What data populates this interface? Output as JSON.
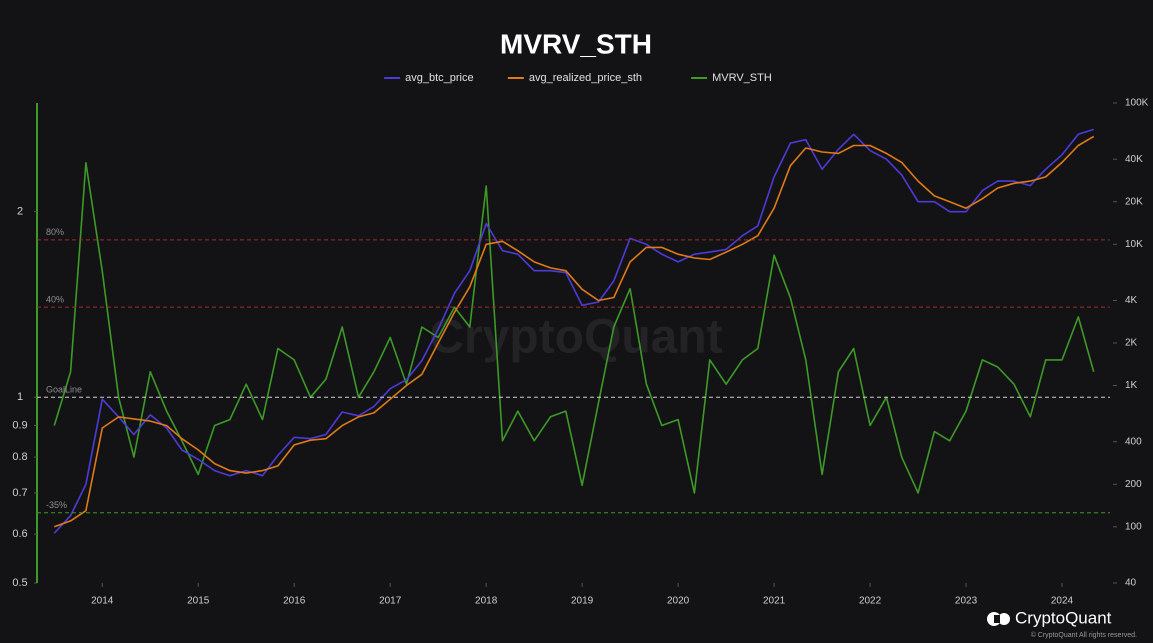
{
  "chart_data": {
    "type": "line",
    "title": "MVRV_STH",
    "log_scale": true,
    "grid": false,
    "legend": "top",
    "x": [
      2013.5,
      2013.67,
      2013.83,
      2014,
      2014.17,
      2014.33,
      2014.5,
      2014.67,
      2014.83,
      2015,
      2015.17,
      2015.33,
      2015.5,
      2015.67,
      2015.83,
      2016,
      2016.17,
      2016.33,
      2016.5,
      2016.67,
      2016.83,
      2017,
      2017.17,
      2017.33,
      2017.5,
      2017.67,
      2017.83,
      2018,
      2018.17,
      2018.33,
      2018.5,
      2018.67,
      2018.83,
      2019,
      2019.17,
      2019.33,
      2019.5,
      2019.67,
      2019.83,
      2020,
      2020.17,
      2020.33,
      2020.5,
      2020.67,
      2020.83,
      2021,
      2021.17,
      2021.33,
      2021.5,
      2021.67,
      2021.83,
      2022,
      2022.17,
      2022.33,
      2022.5,
      2022.67,
      2022.83,
      2023,
      2023.17,
      2023.33,
      2023.5,
      2023.67,
      2023.83,
      2024,
      2024.17,
      2024.33
    ],
    "xlim": [
      2013.32,
      2024.5
    ],
    "xticks": [
      2014,
      2015,
      2016,
      2017,
      2018,
      2019,
      2020,
      2021,
      2022,
      2023,
      2024
    ],
    "ylim": [
      0.5,
      3
    ],
    "yticks": [
      0.5,
      0.6,
      0.7,
      0.8,
      0.9,
      1,
      2
    ],
    "y2lim": [
      40,
      100000
    ],
    "y2ticks": [
      40,
      100,
      200,
      400,
      {
        "value": 1000,
        "label": "1K"
      },
      {
        "value": 2000,
        "label": "2K"
      },
      {
        "value": 4000,
        "label": "4K"
      },
      {
        "value": 10000,
        "label": "10K"
      },
      {
        "value": 20000,
        "label": "20K"
      },
      {
        "value": 40000,
        "label": "40K"
      },
      {
        "value": 100000,
        "label": "100K"
      }
    ],
    "reference_lines": [
      {
        "value": 1.8,
        "label": "80%",
        "color": "#a32b2b"
      },
      {
        "value": 1.4,
        "label": "40%",
        "color": "#a32b2b"
      },
      {
        "value": 1,
        "label": "GoalLine",
        "color": "#d0d0d0"
      },
      {
        "value": 0.65,
        "label": "-35%",
        "color": "#3d9a26"
      }
    ],
    "series": [
      {
        "name": "avg_btc_price",
        "color": "#4d3bd8",
        "axis": "y2",
        "values": [
          90,
          120,
          200,
          800,
          600,
          450,
          620,
          500,
          350,
          300,
          250,
          230,
          250,
          230,
          320,
          430,
          420,
          450,
          650,
          610,
          710,
          950,
          1100,
          1500,
          2500,
          4500,
          6500,
          14000,
          9000,
          8500,
          6500,
          6500,
          6300,
          3700,
          3900,
          5500,
          11000,
          10000,
          8500,
          7500,
          8500,
          8800,
          9200,
          11500,
          13500,
          30000,
          52000,
          55000,
          34000,
          47000,
          60000,
          46000,
          40000,
          31000,
          20000,
          20000,
          17000,
          17000,
          24000,
          28000,
          28000,
          26000,
          34000,
          43000,
          60000,
          65000
        ]
      },
      {
        "name": "avg_realized_price_sth",
        "color": "#e07a16",
        "axis": "y2",
        "values": [
          100,
          110,
          130,
          500,
          600,
          580,
          560,
          520,
          420,
          350,
          280,
          250,
          240,
          250,
          270,
          380,
          410,
          420,
          520,
          600,
          640,
          800,
          1000,
          1200,
          2000,
          3300,
          5000,
          10000,
          10500,
          9000,
          7500,
          6800,
          6500,
          4800,
          4000,
          4200,
          7500,
          9500,
          9500,
          8500,
          8000,
          7800,
          8800,
          10000,
          11500,
          18000,
          36000,
          48000,
          45000,
          44000,
          50000,
          50000,
          44000,
          38000,
          28000,
          22000,
          20000,
          18000,
          21000,
          25000,
          27000,
          28000,
          30000,
          38000,
          50000,
          58000
        ]
      },
      {
        "name": "MVRV_STH",
        "color": "#3d9a26",
        "axis": "y",
        "values": [
          0.9,
          1.1,
          2.4,
          1.6,
          1.0,
          0.8,
          1.1,
          0.95,
          0.85,
          0.75,
          0.9,
          0.92,
          1.05,
          0.92,
          1.2,
          1.15,
          1.0,
          1.07,
          1.3,
          1.0,
          1.1,
          1.25,
          1.05,
          1.3,
          1.25,
          1.4,
          1.3,
          2.2,
          0.85,
          0.95,
          0.85,
          0.93,
          0.95,
          0.72,
          0.98,
          1.3,
          1.5,
          1.05,
          0.9,
          0.92,
          0.7,
          1.15,
          1.05,
          1.15,
          1.2,
          1.7,
          1.45,
          1.15,
          0.75,
          1.1,
          1.2,
          0.9,
          1.0,
          0.8,
          0.7,
          0.88,
          0.85,
          0.95,
          1.15,
          1.12,
          1.05,
          0.93,
          1.15,
          1.15,
          1.35,
          1.1
        ]
      }
    ]
  },
  "watermark": "CryptoQuant",
  "brand": "CryptoQuant",
  "copyright": "© CryptoQuant All rights reserved."
}
